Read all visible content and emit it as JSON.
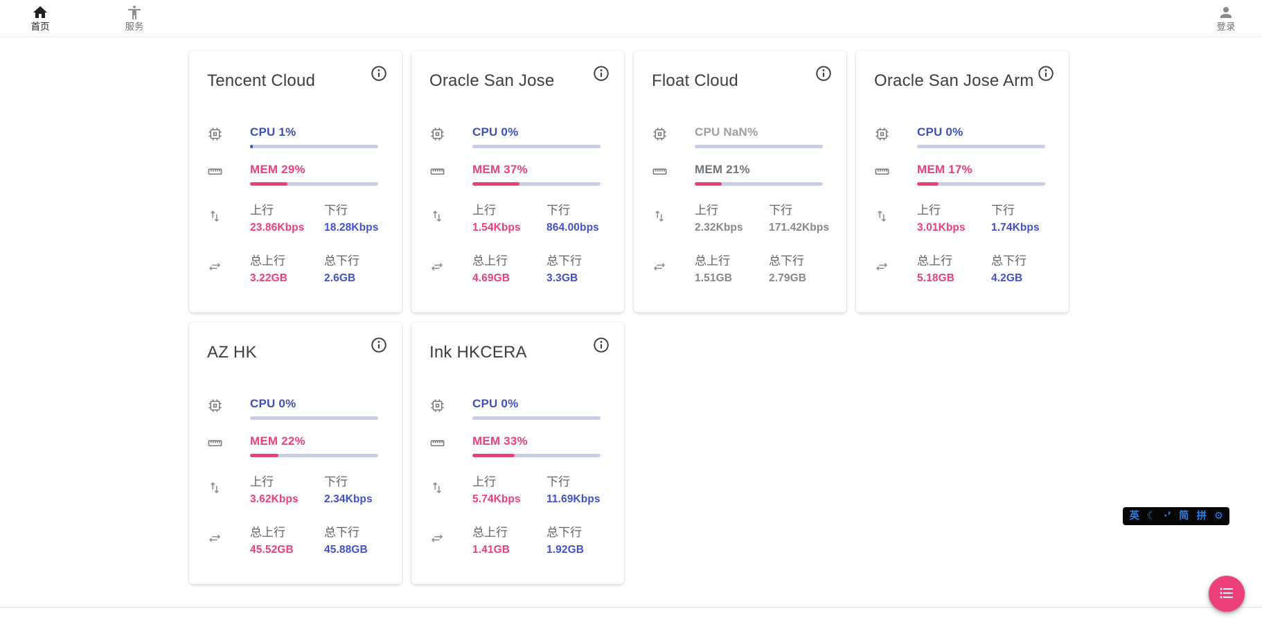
{
  "nav": {
    "home_label": "首页",
    "services_label": "服务",
    "login_label": "登录"
  },
  "card_labels": {
    "upload": "上行",
    "download": "下行",
    "total_upload": "总上行",
    "total_download": "总下行"
  },
  "servers": [
    {
      "name": "Tencent Cloud",
      "cpu_label": "CPU 1%",
      "cpu_pct": 1,
      "mem_label": "MEM 29%",
      "mem_pct": 29,
      "up_speed": "23.86Kbps",
      "down_speed": "18.28Kbps",
      "total_up": "3.22GB",
      "total_down": "2.6GB",
      "offline": false
    },
    {
      "name": "Oracle San Jose",
      "cpu_label": "CPU 0%",
      "cpu_pct": 0,
      "mem_label": "MEM 37%",
      "mem_pct": 37,
      "up_speed": "1.54Kbps",
      "down_speed": "864.00bps",
      "total_up": "4.69GB",
      "total_down": "3.3GB",
      "offline": false
    },
    {
      "name": "Float Cloud",
      "cpu_label": "CPU NaN%",
      "cpu_pct": null,
      "mem_label": "MEM 21%",
      "mem_pct": 21,
      "up_speed": "2.32Kbps",
      "down_speed": "171.42Kbps",
      "total_up": "1.51GB",
      "total_down": "2.79GB",
      "offline": true
    },
    {
      "name": "Oracle San Jose Arm",
      "cpu_label": "CPU 0%",
      "cpu_pct": 0,
      "mem_label": "MEM 17%",
      "mem_pct": 17,
      "up_speed": "3.01Kbps",
      "down_speed": "1.74Kbps",
      "total_up": "5.18GB",
      "total_down": "4.2GB",
      "offline": false
    },
    {
      "name": "AZ HK",
      "cpu_label": "CPU 0%",
      "cpu_pct": 0,
      "mem_label": "MEM 22%",
      "mem_pct": 22,
      "up_speed": "3.62Kbps",
      "down_speed": "2.34Kbps",
      "total_up": "45.52GB",
      "total_down": "45.88GB",
      "offline": false
    },
    {
      "name": "Ink HKCERA",
      "cpu_label": "CPU 0%",
      "cpu_pct": 0,
      "mem_label": "MEM 33%",
      "mem_pct": 33,
      "up_speed": "5.74Kbps",
      "down_speed": "11.69Kbps",
      "total_up": "1.41GB",
      "total_down": "1.92GB",
      "offline": false
    }
  ],
  "ime": {
    "items": [
      "英",
      "☾",
      "·’",
      "简",
      "拼",
      "⚙"
    ]
  },
  "colors": {
    "accent_pink": "#ee3e7b",
    "accent_blue": "#3c50bd",
    "value_blue": "#4051cf",
    "bar_track": "#c9cdea",
    "fab_pink": "#ec407a",
    "ime_blue": "#2b7de9"
  }
}
